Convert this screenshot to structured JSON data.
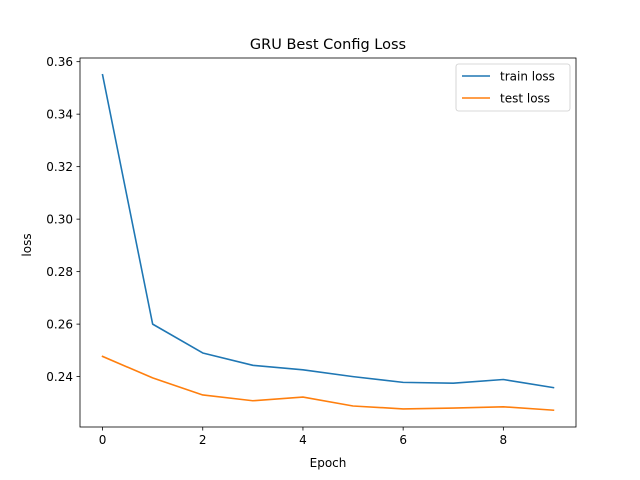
{
  "chart_data": {
    "type": "line",
    "title": "GRU Best Config Loss",
    "xlabel": "Epoch",
    "ylabel": "loss",
    "x": [
      0,
      1,
      2,
      3,
      4,
      5,
      6,
      7,
      8,
      9
    ],
    "series": [
      {
        "name": "train loss",
        "color": "#1f77b4",
        "values": [
          0.355,
          0.26,
          0.249,
          0.2443,
          0.2426,
          0.24,
          0.2378,
          0.2375,
          0.2389,
          0.2358
        ]
      },
      {
        "name": "test loss",
        "color": "#ff7f0e",
        "values": [
          0.2477,
          0.2395,
          0.233,
          0.2308,
          0.2322,
          0.2288,
          0.2277,
          0.228,
          0.2285,
          0.2272
        ]
      }
    ],
    "xticks": [
      0,
      2,
      4,
      6,
      8
    ],
    "yticks": [
      0.24,
      0.26,
      0.28,
      0.3,
      0.32,
      0.34,
      0.36
    ],
    "xlim": [
      -0.45,
      9.45
    ],
    "ylim": [
      0.2208,
      0.3614
    ],
    "grid": false,
    "legend_position": "top-right"
  }
}
